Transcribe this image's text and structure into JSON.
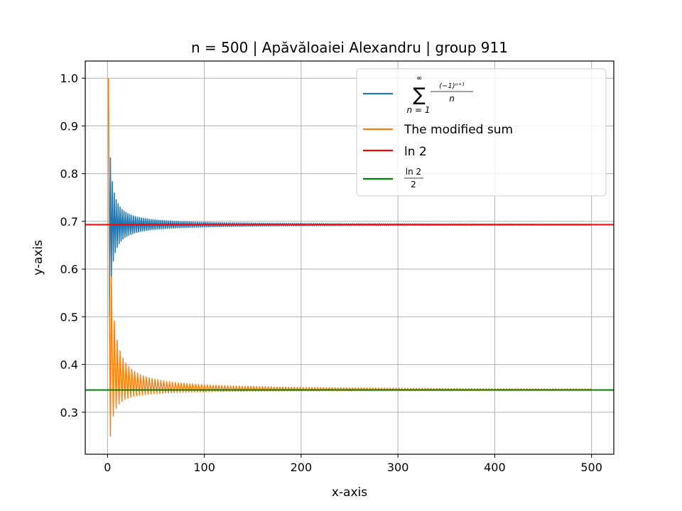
{
  "chart_data": {
    "type": "line",
    "title": "n = 500 | Apăvăloaiei Alexandru | group 911",
    "xlabel": "x-axis",
    "ylabel": "y-axis",
    "xlim": [
      -23,
      523
    ],
    "ylim": [
      0.212,
      1.036
    ],
    "xticks": [
      0,
      100,
      200,
      300,
      400,
      500
    ],
    "yticks": [
      0.3,
      0.4,
      0.5,
      0.6,
      0.7,
      0.8,
      0.9,
      1.0
    ],
    "xtick_labels": [
      "0",
      "100",
      "200",
      "300",
      "400",
      "500"
    ],
    "ytick_labels": [
      "0.3",
      "0.4",
      "0.5",
      "0.6",
      "0.7",
      "0.8",
      "0.9",
      "1.0"
    ],
    "grid": true,
    "legend_position": "top-right",
    "n": 500,
    "series": [
      {
        "name": "Σ (−1)^(n+1)/n, n=1 to ∞",
        "color": "#1f77b4",
        "formula": "partial sums of alternating harmonic series, k = 1..500",
        "x_range": [
          1,
          500
        ],
        "y_start": 1.0,
        "converges_to": 0.6931
      },
      {
        "name": "The modified sum",
        "color": "#ff7f0e",
        "formula": "rearranged sum 1 − 1/2 − 1/4 + 1/3 − 1/6 − 1/8 + …, k = 1..500",
        "x_range": [
          1,
          500
        ],
        "y_start": 1.0,
        "converges_to": 0.3466
      },
      {
        "name": "ln 2",
        "color": "#ff0000",
        "type": "hline",
        "y": 0.6931
      },
      {
        "name": "ln 2 / 2",
        "color": "#008000",
        "type": "hline",
        "y": 0.3466
      }
    ],
    "legend": {
      "series1_sum_top": "∞",
      "series1_sum_sign": "∑",
      "series1_sum_bottom": "n = 1",
      "series1_numer": "(−1)ⁿ⁺¹",
      "series1_denom": "n",
      "series2_label": "The modified sum",
      "series3_label": "ln 2",
      "series4_numer": "ln 2",
      "series4_denom": "2"
    }
  }
}
